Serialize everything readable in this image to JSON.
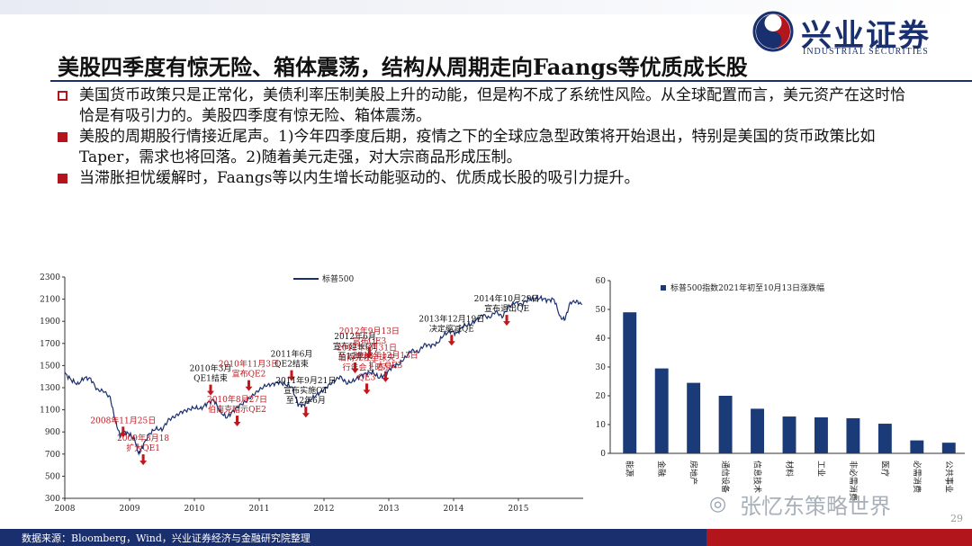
{
  "slide": {
    "title": "美股四季度有惊无险、箱体震荡，结构从周期走向Faangs等优质成长股",
    "bullets": [
      {
        "text": "美国货币政策只是正常化，美债利率压制美股上升的动能，但是构不成了系统性风险。从全球配置而言，美元资产在这时恰恰是有吸引力的。美股四季度有惊无险、箱体震荡。",
        "hollow": true
      },
      {
        "text": "美股的周期股行情接近尾声。1)今年四季度后期，疫情之下的全球应急型政策将开始退出，特别是美国的货币政策比如Taper，需求也将回落。2)随着美元走强，对大宗商品形成压制。",
        "hollow": false
      },
      {
        "text": "当滞胀担忧缓解时，Faangs等以内生增长动能驱动的、优质成长股的吸引力提升。",
        "hollow": false
      }
    ],
    "logo_cn": "兴业证券",
    "logo_en": "INDUSTRIAL SECURITIES",
    "source": "数据来源：Bloomberg，Wind，兴业证券经济与金融研究院整理",
    "page_number": "29",
    "watermark": "张忆东策略世界",
    "brand_colors": {
      "navy": "#1a2f6e",
      "red": "#b3151c"
    }
  },
  "chart_data": [
    {
      "type": "line",
      "legend": "标普500",
      "y_ticks": [
        300,
        500,
        700,
        900,
        1100,
        1300,
        1500,
        1700,
        1900,
        2100,
        2300
      ],
      "ylim": [
        300,
        2300
      ],
      "x_ticks": [
        2008,
        2009,
        2010,
        2011,
        2012,
        2013,
        2014,
        2015
      ],
      "xlim": [
        2008.0,
        2016.0
      ],
      "series": {
        "x": [
          2008.0,
          2008.1,
          2008.2,
          2008.3,
          2008.4,
          2008.5,
          2008.6,
          2008.7,
          2008.78,
          2008.85,
          2008.92,
          2009.0,
          2009.08,
          2009.14,
          2009.2,
          2009.3,
          2009.4,
          2009.5,
          2009.6,
          2009.7,
          2009.8,
          2009.9,
          2010.0,
          2010.1,
          2010.2,
          2010.3,
          2010.4,
          2010.5,
          2010.6,
          2010.7,
          2010.8,
          2010.9,
          2011.0,
          2011.1,
          2011.2,
          2011.3,
          2011.4,
          2011.5,
          2011.6,
          2011.68,
          2011.75,
          2011.85,
          2011.95,
          2012.05,
          2012.15,
          2012.25,
          2012.35,
          2012.45,
          2012.55,
          2012.65,
          2012.75,
          2012.85,
          2012.95,
          2013.05,
          2013.15,
          2013.25,
          2013.35,
          2013.45,
          2013.55,
          2013.65,
          2013.75,
          2013.85,
          2013.95,
          2014.05,
          2014.15,
          2014.25,
          2014.35,
          2014.45,
          2014.55,
          2014.65,
          2014.75,
          2014.85,
          2014.95,
          2015.05,
          2015.15,
          2015.25,
          2015.35,
          2015.45,
          2015.55,
          2015.65,
          2015.72,
          2015.8,
          2015.9,
          2015.98
        ],
        "y": [
          1430,
          1370,
          1330,
          1390,
          1380,
          1280,
          1270,
          1210,
          1000,
          870,
          900,
          880,
          830,
          700,
          770,
          880,
          930,
          920,
          1010,
          1040,
          1080,
          1100,
          1120,
          1110,
          1160,
          1190,
          1080,
          1030,
          1090,
          1140,
          1180,
          1230,
          1280,
          1320,
          1330,
          1350,
          1330,
          1310,
          1150,
          1140,
          1170,
          1220,
          1260,
          1310,
          1360,
          1400,
          1340,
          1360,
          1400,
          1430,
          1440,
          1390,
          1420,
          1490,
          1510,
          1570,
          1640,
          1620,
          1690,
          1680,
          1700,
          1780,
          1810,
          1790,
          1860,
          1870,
          1910,
          1960,
          1930,
          1990,
          1940,
          2030,
          2070,
          2050,
          2100,
          2100,
          2110,
          2090,
          2100,
          1930,
          1920,
          2070,
          2080,
          2050
        ]
      },
      "annotations": [
        {
          "label": "2008年11月25日",
          "x": 2008.9,
          "y": 850,
          "red": true
        },
        {
          "label": "2009年3月18\n扩大QE1",
          "x": 2009.21,
          "y": 600,
          "red": true
        },
        {
          "label": "2010年3月\nQE1结束",
          "x": 2010.25,
          "y": 1230,
          "red": false
        },
        {
          "label": "2010年8月27日\n伯南克暗示QE2",
          "x": 2010.66,
          "y": 950,
          "red": true
        },
        {
          "label": "2010年11月3日\n宣布QE2",
          "x": 2010.84,
          "y": 1270,
          "red": true
        },
        {
          "label": "2011年6月\nQE2结束",
          "x": 2011.5,
          "y": 1360,
          "red": false
        },
        {
          "label": "2011年9月21日\n宣布实施OT\n至12年6月",
          "x": 2011.72,
          "y": 1030,
          "red": false
        },
        {
          "label": "2012年6月\n宣布延长OT\n至12年末",
          "x": 2012.48,
          "y": 1430,
          "red": false
        },
        {
          "label": "2012年9月13日\n宣布QE3",
          "x": 2012.7,
          "y": 1570,
          "red": true
        },
        {
          "label": "2012年8月31日\n伯南克在全球央\n行年会上暗示\nQE3",
          "x": 2012.66,
          "y": 1240,
          "red": true
        },
        {
          "label": "2012年12月13日\n扩大QE3",
          "x": 2012.95,
          "y": 1350,
          "red": true
        },
        {
          "label": "2013年12月19日\n决定缩减QE",
          "x": 2013.97,
          "y": 1680,
          "red": false
        },
        {
          "label": "2014年10月29日\n宣布退出QE",
          "x": 2014.82,
          "y": 1860,
          "red": false
        }
      ]
    },
    {
      "type": "bar",
      "title": "标普500指数2021年初至10月13日涨跌幅",
      "categories": [
        "能源",
        "金融",
        "房地产",
        "通信设备",
        "信息技术",
        "材料",
        "工业",
        "非必需消费",
        "医疗",
        "必需消费",
        "公共事业"
      ],
      "values": [
        49,
        29.5,
        24.5,
        20,
        15.5,
        12.8,
        12.5,
        12.2,
        10.3,
        4.5,
        3.7
      ],
      "ylim": [
        0,
        60
      ],
      "y_ticks": [
        0,
        10,
        20,
        30,
        40,
        50,
        60
      ],
      "bar_color": "#1a3a78"
    }
  ]
}
